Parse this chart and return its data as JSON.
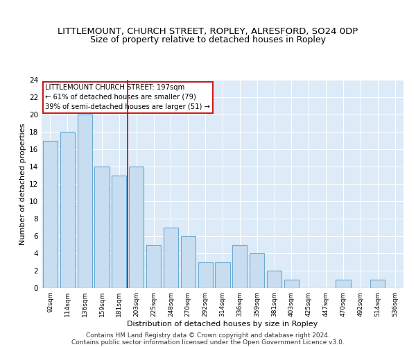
{
  "title": "LITTLEMOUNT, CHURCH STREET, ROPLEY, ALRESFORD, SO24 0DP",
  "subtitle": "Size of property relative to detached houses in Ropley",
  "xlabel": "Distribution of detached houses by size in Ropley",
  "ylabel": "Number of detached properties",
  "categories": [
    "92sqm",
    "114sqm",
    "136sqm",
    "159sqm",
    "181sqm",
    "203sqm",
    "225sqm",
    "248sqm",
    "270sqm",
    "292sqm",
    "314sqm",
    "336sqm",
    "359sqm",
    "381sqm",
    "403sqm",
    "425sqm",
    "447sqm",
    "470sqm",
    "492sqm",
    "514sqm",
    "536sqm"
  ],
  "values": [
    17,
    18,
    20,
    14,
    13,
    14,
    5,
    7,
    6,
    3,
    3,
    5,
    4,
    2,
    1,
    0,
    0,
    1,
    0,
    1,
    0
  ],
  "bar_color": "#c9ddf0",
  "bar_edge_color": "#6aaad4",
  "bar_width": 0.85,
  "marker_idx": 5,
  "marker_line_color": "#cc0000",
  "annotation_line1": "LITTLEMOUNT CHURCH STREET: 197sqm",
  "annotation_line2": "← 61% of detached houses are smaller (79)",
  "annotation_line3": "39% of semi-detached houses are larger (51) →",
  "ylim": [
    0,
    24
  ],
  "yticks": [
    0,
    2,
    4,
    6,
    8,
    10,
    12,
    14,
    16,
    18,
    20,
    22,
    24
  ],
  "bg_color": "#ddeaf7",
  "footer1": "Contains HM Land Registry data © Crown copyright and database right 2024.",
  "footer2": "Contains public sector information licensed under the Open Government Licence v3.0."
}
